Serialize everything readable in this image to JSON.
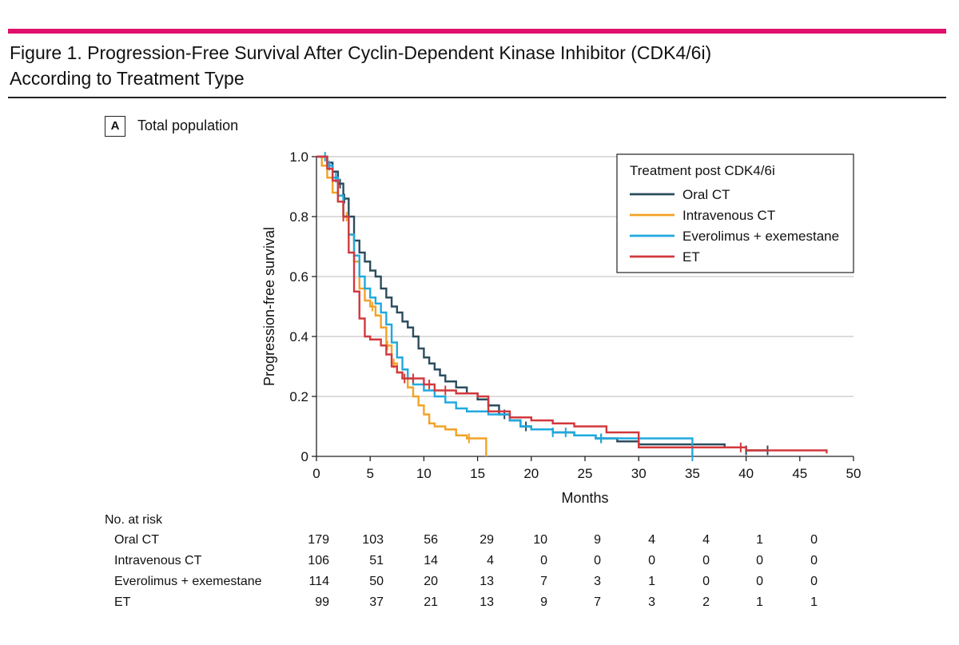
{
  "figure": {
    "title_line1": "Figure 1. Progression-Free Survival After Cyclin-Dependent Kinase Inhibitor (CDK4/6i)",
    "title_line2": "According to Treatment Type",
    "panel_label": "A",
    "panel_title": "Total population"
  },
  "colors": {
    "accent_rule": "#e0116c",
    "oral_ct": "#2b4d5e",
    "intravenous_ct": "#f2a227",
    "everolimus": "#1fa9df",
    "et": "#d2383d"
  },
  "chart_data": {
    "type": "line",
    "subtype": "kaplan-meier step",
    "xlabel": "Months",
    "ylabel": "Progression-free survival",
    "xlim": [
      0,
      50
    ],
    "ylim": [
      0,
      1.0
    ],
    "x_ticks": [
      0,
      5,
      10,
      15,
      20,
      25,
      30,
      35,
      40,
      45,
      50
    ],
    "y_ticks": [
      0,
      0.2,
      0.4,
      0.6,
      0.8,
      1.0
    ],
    "y_tick_labels": [
      "0",
      "0.2",
      "0.4",
      "0.6",
      "0.8",
      "1.0"
    ],
    "grid": "horizontal",
    "legend_title": "Treatment post CDK4/6i",
    "legend_position": "top-right",
    "series": [
      {
        "name": "Oral CT",
        "color_key": "oral_ct",
        "steps": [
          [
            0,
            1.0
          ],
          [
            1,
            0.98
          ],
          [
            1.5,
            0.95
          ],
          [
            2,
            0.91
          ],
          [
            2.5,
            0.86
          ],
          [
            3,
            0.8
          ],
          [
            3.5,
            0.72
          ],
          [
            4,
            0.68
          ],
          [
            4.5,
            0.65
          ],
          [
            5,
            0.62
          ],
          [
            5.5,
            0.6
          ],
          [
            6,
            0.56
          ],
          [
            6.5,
            0.53
          ],
          [
            7,
            0.5
          ],
          [
            7.5,
            0.48
          ],
          [
            8,
            0.45
          ],
          [
            8.5,
            0.43
          ],
          [
            9,
            0.4
          ],
          [
            9.5,
            0.36
          ],
          [
            10,
            0.33
          ],
          [
            10.5,
            0.31
          ],
          [
            11,
            0.29
          ],
          [
            11.5,
            0.27
          ],
          [
            12,
            0.25
          ],
          [
            13,
            0.23
          ],
          [
            14,
            0.21
          ],
          [
            15,
            0.19
          ],
          [
            16,
            0.17
          ],
          [
            17,
            0.14
          ],
          [
            18,
            0.12
          ],
          [
            19,
            0.1
          ],
          [
            20,
            0.09
          ],
          [
            22,
            0.08
          ],
          [
            24,
            0.07
          ],
          [
            26,
            0.06
          ],
          [
            28,
            0.05
          ],
          [
            30,
            0.04
          ],
          [
            38,
            0.03
          ],
          [
            40,
            0.02
          ],
          [
            42,
            0.02
          ]
        ],
        "censor_x": [
          1.5,
          2.2,
          2.6,
          3.0,
          17.5,
          19.5,
          26.5,
          40.0,
          42.0
        ]
      },
      {
        "name": "Intravenous CT",
        "color_key": "intravenous_ct",
        "steps": [
          [
            0,
            1.0
          ],
          [
            0.5,
            0.97
          ],
          [
            1,
            0.93
          ],
          [
            1.5,
            0.88
          ],
          [
            2,
            0.85
          ],
          [
            2.5,
            0.8
          ],
          [
            3,
            0.74
          ],
          [
            3.5,
            0.65
          ],
          [
            4,
            0.56
          ],
          [
            4.5,
            0.52
          ],
          [
            5,
            0.5
          ],
          [
            5.5,
            0.47
          ],
          [
            6,
            0.43
          ],
          [
            6.5,
            0.37
          ],
          [
            7,
            0.31
          ],
          [
            7.5,
            0.28
          ],
          [
            8,
            0.26
          ],
          [
            8.5,
            0.23
          ],
          [
            9,
            0.2
          ],
          [
            9.5,
            0.17
          ],
          [
            10,
            0.14
          ],
          [
            10.5,
            0.11
          ],
          [
            11,
            0.1
          ],
          [
            12,
            0.09
          ],
          [
            13,
            0.07
          ],
          [
            14,
            0.06
          ],
          [
            15.5,
            0.06
          ],
          [
            15.8,
            0.0
          ]
        ],
        "censor_x": [
          2.8,
          5.2,
          6.6,
          7.2,
          14.2
        ]
      },
      {
        "name": "Everolimus + exemestane",
        "color_key": "everolimus",
        "steps": [
          [
            0,
            1.0
          ],
          [
            1,
            0.97
          ],
          [
            1.5,
            0.93
          ],
          [
            2,
            0.87
          ],
          [
            2.5,
            0.8
          ],
          [
            3,
            0.74
          ],
          [
            3.5,
            0.67
          ],
          [
            4,
            0.6
          ],
          [
            4.5,
            0.56
          ],
          [
            5,
            0.53
          ],
          [
            5.5,
            0.51
          ],
          [
            6,
            0.48
          ],
          [
            6.5,
            0.44
          ],
          [
            7,
            0.38
          ],
          [
            7.5,
            0.33
          ],
          [
            8,
            0.29
          ],
          [
            8.5,
            0.26
          ],
          [
            9,
            0.24
          ],
          [
            10,
            0.22
          ],
          [
            11,
            0.2
          ],
          [
            12,
            0.18
          ],
          [
            13,
            0.16
          ],
          [
            14,
            0.15
          ],
          [
            16,
            0.14
          ],
          [
            18,
            0.12
          ],
          [
            19,
            0.1
          ],
          [
            20,
            0.09
          ],
          [
            22,
            0.08
          ],
          [
            24,
            0.07
          ],
          [
            26,
            0.06
          ],
          [
            28,
            0.06
          ],
          [
            35,
            0.0
          ]
        ],
        "censor_x": [
          0.8,
          1.2,
          1.8,
          2.0,
          22.0,
          23.2,
          26.5,
          35.0
        ]
      },
      {
        "name": "ET",
        "color_key": "et",
        "steps": [
          [
            0,
            1.0
          ],
          [
            1,
            0.96
          ],
          [
            1.5,
            0.92
          ],
          [
            2,
            0.85
          ],
          [
            2.5,
            0.8
          ],
          [
            3,
            0.68
          ],
          [
            3.5,
            0.55
          ],
          [
            4,
            0.46
          ],
          [
            4.5,
            0.4
          ],
          [
            5,
            0.39
          ],
          [
            6,
            0.37
          ],
          [
            6.5,
            0.34
          ],
          [
            7,
            0.3
          ],
          [
            7.5,
            0.28
          ],
          [
            8,
            0.26
          ],
          [
            10,
            0.24
          ],
          [
            11,
            0.22
          ],
          [
            13,
            0.21
          ],
          [
            15,
            0.2
          ],
          [
            16,
            0.15
          ],
          [
            18,
            0.13
          ],
          [
            20,
            0.12
          ],
          [
            22,
            0.11
          ],
          [
            24,
            0.1
          ],
          [
            27,
            0.08
          ],
          [
            30,
            0.03
          ],
          [
            40,
            0.02
          ],
          [
            47.5,
            0.01
          ]
        ],
        "censor_x": [
          2.5,
          8.2,
          9.0,
          10.5,
          12.0,
          39.5
        ]
      }
    ]
  },
  "risk_table": {
    "header": "No. at risk",
    "rows": [
      {
        "label": "Oral CT",
        "values": [
          "179",
          "103",
          "56",
          "29",
          "10",
          "9",
          "4",
          "4",
          "1",
          "0"
        ]
      },
      {
        "label": "Intravenous CT",
        "values": [
          "106",
          "51",
          "14",
          "4",
          "0",
          "0",
          "0",
          "0",
          "0",
          "0"
        ]
      },
      {
        "label": "Everolimus + exemestane",
        "values": [
          "114",
          "50",
          "20",
          "13",
          "7",
          "3",
          "1",
          "0",
          "0",
          "0"
        ]
      },
      {
        "label": "ET",
        "values": [
          "99",
          "37",
          "21",
          "13",
          "9",
          "7",
          "3",
          "2",
          "1",
          "1"
        ]
      }
    ]
  }
}
